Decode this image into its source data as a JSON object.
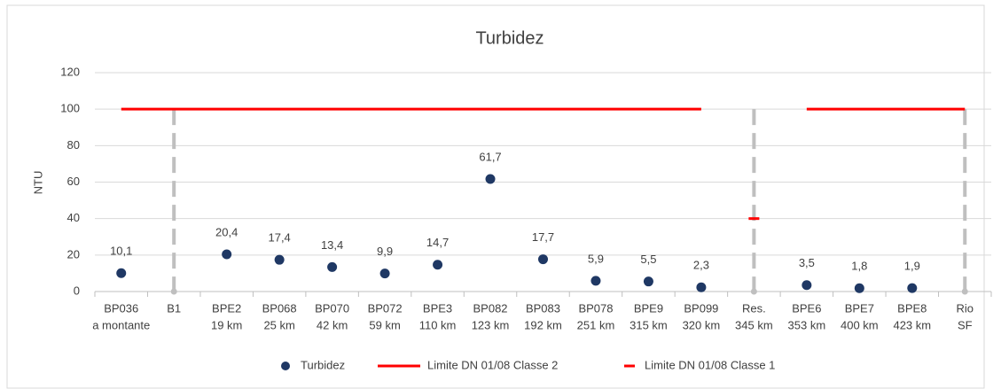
{
  "chart_data": {
    "type": "scatter",
    "title": "Turbidez",
    "y_label": "NTU",
    "categories": [
      [
        "BP036",
        "a montante"
      ],
      [
        "B1"
      ],
      [
        "BPE2",
        "19 km"
      ],
      [
        "BP068",
        "25 km"
      ],
      [
        "BP070",
        "42 km"
      ],
      [
        "BP072",
        "59 km"
      ],
      [
        "BPE3",
        "110 km"
      ],
      [
        "BP082",
        "123 km"
      ],
      [
        "BP083",
        "192 km"
      ],
      [
        "BP078",
        "251 km"
      ],
      [
        "BPE9",
        "315 km"
      ],
      [
        "BP099",
        "320 km"
      ],
      [
        "Res.",
        "345 km"
      ],
      [
        "BPE6",
        "353 km"
      ],
      [
        "BPE7",
        "400 km"
      ],
      [
        "BPE8",
        "423 km"
      ],
      [
        "Rio",
        "SF"
      ]
    ],
    "series": [
      {
        "name": "Turbidez",
        "color": "#1f3864",
        "kind": "marker",
        "values": [
          10.1,
          null,
          20.4,
          17.4,
          13.4,
          9.9,
          14.7,
          61.7,
          17.7,
          5.9,
          5.5,
          2.3,
          null,
          3.5,
          1.8,
          1.9,
          null
        ],
        "value_labels": [
          "10,1",
          null,
          "20,4",
          "17,4",
          "13,4",
          "9,9",
          "14,7",
          "61,7",
          "17,7",
          "5,9",
          "5,5",
          "2,3",
          null,
          "3,5",
          "1,8",
          "1,9",
          null
        ]
      },
      {
        "name": "Limite DN 01/08 Classe 2",
        "color": "#ff0000",
        "kind": "line",
        "values": [
          100,
          100,
          100,
          100,
          100,
          100,
          100,
          100,
          100,
          100,
          100,
          100,
          null,
          100,
          100,
          100,
          100
        ]
      },
      {
        "name": "Limite DN 01/08 Classe 1",
        "color": "#ff0000",
        "kind": "dash",
        "values": [
          null,
          null,
          null,
          null,
          null,
          null,
          null,
          null,
          null,
          null,
          null,
          null,
          40,
          null,
          null,
          null,
          null
        ]
      }
    ],
    "ylim": [
      0,
      120
    ],
    "yticks": [
      0,
      20,
      40,
      60,
      80,
      100,
      120
    ],
    "grid": true
  }
}
